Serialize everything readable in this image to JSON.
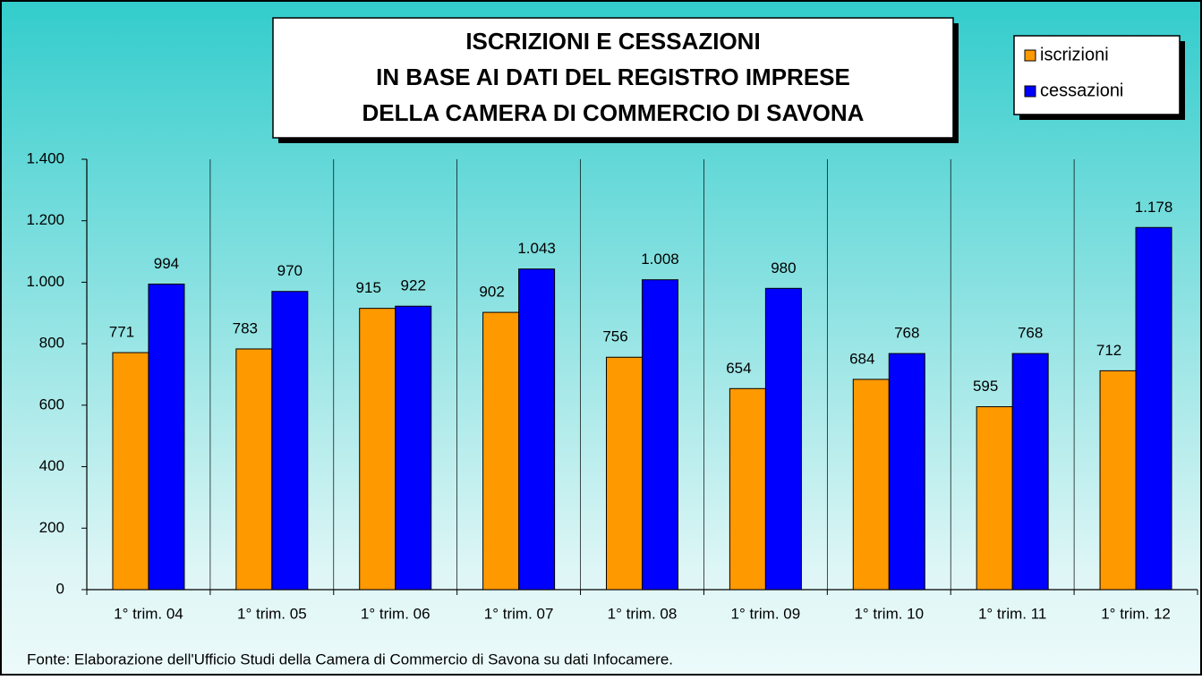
{
  "chart_data": {
    "type": "bar",
    "title": [
      "ISCRIZIONI E CESSAZIONI",
      "IN BASE AI DATI DEL REGISTRO IMPRESE",
      "DELLA CAMERA DI COMMERCIO DI SAVONA"
    ],
    "categories": [
      "1° trim. 04",
      "1° trim. 05",
      "1° trim. 06",
      "1° trim. 07",
      "1° trim. 08",
      "1° trim. 09",
      "1° trim. 10",
      "1° trim. 11",
      "1° trim. 12"
    ],
    "series": [
      {
        "name": "iscrizioni",
        "color": "#ff9900",
        "values": [
          771,
          783,
          915,
          902,
          756,
          654,
          684,
          595,
          712
        ],
        "value_labels": [
          "771",
          "783",
          "915",
          "902",
          "756",
          "654",
          "684",
          "595",
          "712"
        ]
      },
      {
        "name": "cessazioni",
        "color": "#0000ff",
        "values": [
          994,
          970,
          922,
          1043,
          1008,
          980,
          768,
          768,
          1178
        ],
        "value_labels": [
          "994",
          "970",
          "922",
          "1.043",
          "1.008",
          "980",
          "768",
          "768",
          "1.178"
        ]
      }
    ],
    "ylim": [
      0,
      1400
    ],
    "yticks": [
      0,
      200,
      400,
      600,
      800,
      {
        "value": 1000,
        "label": "1.000"
      },
      {
        "value": 1200,
        "label": "1.200"
      },
      {
        "value": 1400,
        "label": "1.400"
      }
    ],
    "source": "Fonte: Elaborazione dell'Ufficio Studi della Camera di Commercio di Savona su dati Infocamere.",
    "legend_position": "upper right"
  }
}
